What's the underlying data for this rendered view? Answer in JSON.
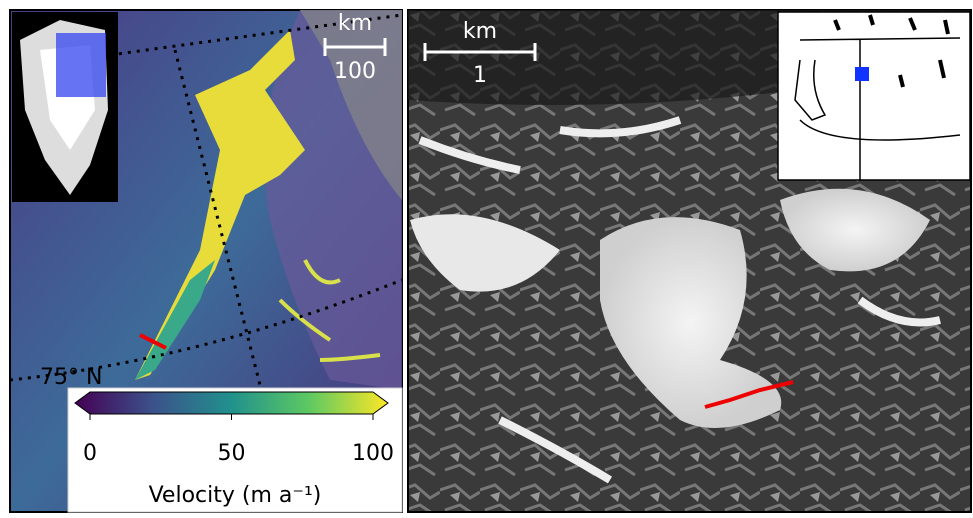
{
  "left_panel": {
    "scale_bar": {
      "unit": "km",
      "length": "100"
    },
    "latitude_label": "75° N",
    "colorbar": {
      "label": "Velocity (m a⁻¹)",
      "lim": [
        0,
        100
      ],
      "ticks": [
        0,
        50,
        100
      ]
    }
  },
  "right_panel": {
    "scale_bar": {
      "unit": "km",
      "length": "1"
    }
  }
}
